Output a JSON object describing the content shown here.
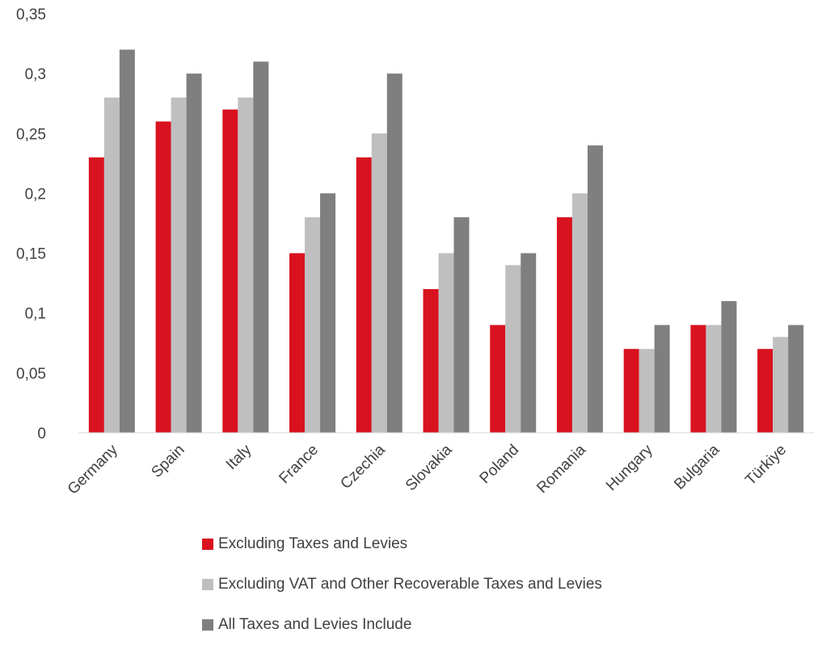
{
  "chart_data": {
    "type": "bar",
    "categories": [
      "Germany",
      "Spain",
      "Italy",
      "France",
      "Czechia",
      "Slovakia",
      "Poland",
      "Romania",
      "Hungary",
      "Bulgaria",
      "Türkiye"
    ],
    "series": [
      {
        "name": "Excluding Taxes and Levies",
        "color": "#d9121f",
        "values": [
          0.23,
          0.26,
          0.27,
          0.15,
          0.23,
          0.12,
          0.09,
          0.18,
          0.07,
          0.09,
          0.07
        ]
      },
      {
        "name": "Excluding VAT and Other Recoverable Taxes and Levies",
        "color": "#bfbfbf",
        "values": [
          0.28,
          0.28,
          0.28,
          0.18,
          0.25,
          0.15,
          0.14,
          0.2,
          0.07,
          0.09,
          0.08
        ]
      },
      {
        "name": "All Taxes and Levies Include",
        "color": "#7f7f7f",
        "values": [
          0.32,
          0.3,
          0.31,
          0.2,
          0.3,
          0.18,
          0.15,
          0.24,
          0.09,
          0.11,
          0.09
        ]
      }
    ],
    "ylim": [
      0,
      0.35
    ],
    "yticks": [
      "0",
      "0,05",
      "0,1",
      "0,15",
      "0,2",
      "0,25",
      "0,3",
      "0,35"
    ],
    "grid": false,
    "legend": "bottom"
  }
}
